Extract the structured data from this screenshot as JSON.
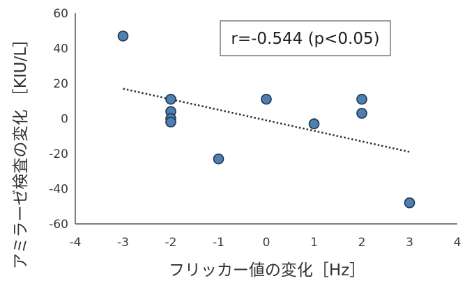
{
  "chart_data": {
    "type": "scatter",
    "title": "",
    "xlabel": "フリッカー値の変化［Hz］",
    "ylabel": "アミラーゼ検査の変化 ［KIU/L］",
    "xlim": [
      -4,
      4
    ],
    "ylim": [
      -60,
      60
    ],
    "x_ticks": [
      -4,
      -3,
      -2,
      -1,
      0,
      1,
      2,
      3,
      4
    ],
    "y_ticks": [
      -60,
      -40,
      -20,
      0,
      20,
      40,
      60
    ],
    "x_tick_labels": [
      "-4",
      "-3",
      "-2",
      "-1",
      "0",
      "1",
      "2",
      "3",
      "4"
    ],
    "y_tick_labels": [
      "-60",
      "-40",
      "-20",
      "0",
      "20",
      "40",
      "60"
    ],
    "grid": false,
    "legend": "none",
    "marker_color": "#4f7fae",
    "marker_edge_color": "#1f3552",
    "trendline": {
      "style": "dotted",
      "color": "#333333",
      "x": [
        -3,
        3
      ],
      "y": [
        17,
        -19
      ]
    },
    "annotation": "r=-0.544 (p<0.05)",
    "points": [
      {
        "x": -3,
        "y": 47
      },
      {
        "x": -2,
        "y": 11
      },
      {
        "x": -2,
        "y": 4
      },
      {
        "x": -2,
        "y": 0
      },
      {
        "x": -2,
        "y": -2
      },
      {
        "x": -1,
        "y": -23
      },
      {
        "x": 0,
        "y": 11
      },
      {
        "x": 1,
        "y": -3
      },
      {
        "x": 2,
        "y": 11
      },
      {
        "x": 2,
        "y": 3
      },
      {
        "x": 3,
        "y": -48
      }
    ]
  }
}
